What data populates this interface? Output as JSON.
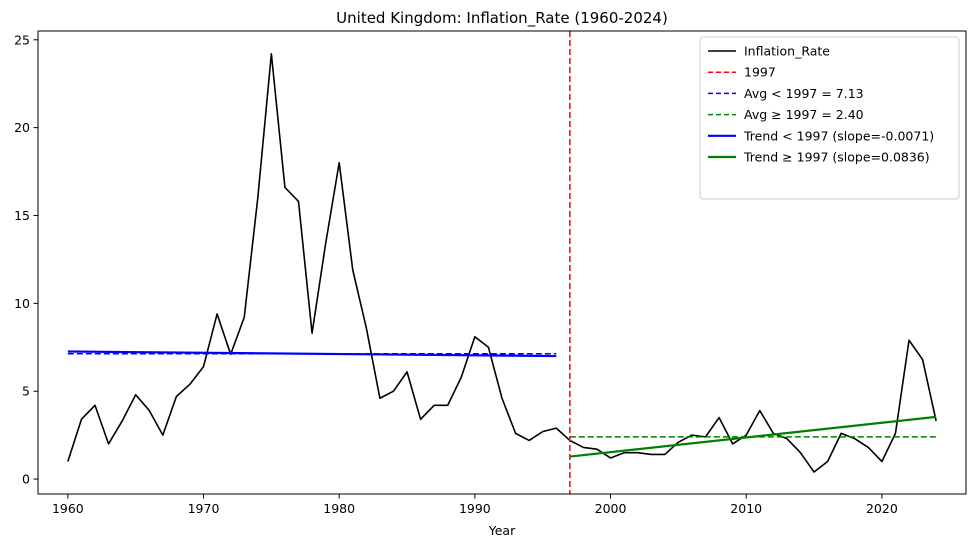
{
  "chart_data": {
    "type": "line",
    "title": "United Kingdom: Inflation_Rate (1960-2024)",
    "xlabel": "Year",
    "ylabel": "",
    "xlim": [
      1957.8,
      2026.2
    ],
    "ylim": [
      -0.85,
      25.5
    ],
    "xticks": [
      1960,
      1970,
      1980,
      1990,
      2000,
      2010,
      2020
    ],
    "yticks": [
      0,
      5,
      10,
      15,
      20,
      25
    ],
    "split_year": 1997,
    "series": [
      {
        "name": "Inflation_Rate",
        "color": "#000000",
        "x": [
          1960,
          1961,
          1962,
          1963,
          1964,
          1965,
          1966,
          1967,
          1968,
          1969,
          1970,
          1971,
          1972,
          1973,
          1974,
          1975,
          1976,
          1977,
          1978,
          1979,
          1980,
          1981,
          1982,
          1983,
          1984,
          1985,
          1986,
          1987,
          1988,
          1989,
          1990,
          1991,
          1992,
          1993,
          1994,
          1995,
          1996,
          1997,
          1998,
          1999,
          2000,
          2001,
          2002,
          2003,
          2004,
          2005,
          2006,
          2007,
          2008,
          2009,
          2010,
          2011,
          2012,
          2013,
          2014,
          2015,
          2016,
          2017,
          2018,
          2019,
          2020,
          2021,
          2022,
          2023,
          2024
        ],
        "values": [
          1.0,
          3.4,
          4.2,
          2.0,
          3.3,
          4.8,
          3.9,
          2.5,
          4.7,
          5.4,
          6.4,
          9.4,
          7.1,
          9.2,
          16.0,
          24.2,
          16.6,
          15.8,
          8.3,
          13.4,
          18.0,
          11.9,
          8.6,
          4.6,
          5.0,
          6.1,
          3.4,
          4.2,
          4.2,
          5.8,
          8.1,
          7.5,
          4.6,
          2.6,
          2.2,
          2.7,
          2.9,
          2.2,
          1.8,
          1.7,
          1.2,
          1.5,
          1.5,
          1.4,
          1.4,
          2.1,
          2.5,
          2.4,
          3.5,
          2.0,
          2.5,
          3.9,
          2.6,
          2.3,
          1.5,
          0.4,
          1.0,
          2.6,
          2.3,
          1.8,
          1.0,
          2.6,
          7.9,
          6.8,
          3.3
        ]
      }
    ],
    "vertical_line": {
      "name": "1997",
      "x": 1997,
      "color": "#ff0000"
    },
    "averages": [
      {
        "name": "Avg < 1997 = 7.13",
        "value": 7.13,
        "x_range": [
          1960,
          1996
        ],
        "color": "#0000ff"
      },
      {
        "name": "Avg ≥ 1997 = 2.40",
        "value": 2.4,
        "x_range": [
          1997,
          2024
        ],
        "color": "#008000"
      }
    ],
    "trends": [
      {
        "name": "Trend < 1997 (slope=-0.0071)",
        "x_range": [
          1960,
          1996
        ],
        "y_range": [
          7.26,
          7.0
        ],
        "color": "#0000ff"
      },
      {
        "name": "Trend ≥ 1997 (slope=0.0836)",
        "x_range": [
          1997,
          2024
        ],
        "y_range": [
          1.28,
          3.54
        ],
        "color": "#008000"
      }
    ],
    "legend_location": "top-right",
    "legend": [
      {
        "label": "Inflation_Rate",
        "style": "solid-thin",
        "color": "#000000"
      },
      {
        "label": "1997",
        "style": "dashed",
        "color": "#ff0000"
      },
      {
        "label": "Avg < 1997 = 7.13",
        "style": "dashed",
        "color": "#0000ff"
      },
      {
        "label": "Avg ≥ 1997 = 2.40",
        "style": "dashed",
        "color": "#008000"
      },
      {
        "label": "Trend < 1997 (slope=-0.0071)",
        "style": "solid-thick",
        "color": "#0000ff"
      },
      {
        "label": "Trend ≥ 1997 (slope=0.0836)",
        "style": "solid-thick",
        "color": "#008000"
      }
    ]
  }
}
